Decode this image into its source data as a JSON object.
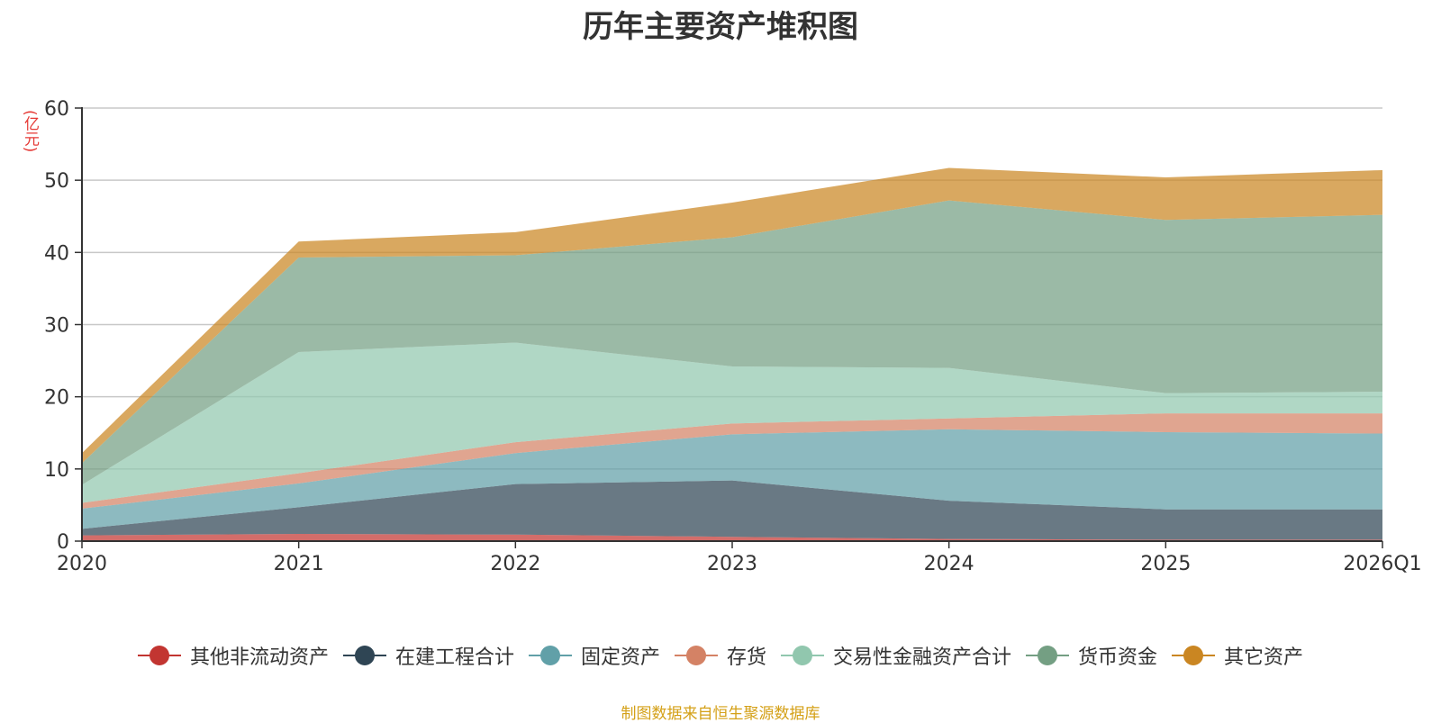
{
  "chart_data": {
    "type": "area",
    "stacked": true,
    "title": "历年主要资产堆积图",
    "unit_label": "(亿元)",
    "categories": [
      "2020",
      "2021",
      "2022",
      "2023",
      "2024",
      "2025",
      "2026Q1"
    ],
    "ylim": [
      0,
      60
    ],
    "yticks": [
      0,
      10,
      20,
      30,
      40,
      50,
      60
    ],
    "grid": true,
    "legend_position": "bottom",
    "series": [
      {
        "name": "其他非流动资产",
        "color": "#c23531",
        "values": [
          0.8,
          1.0,
          0.9,
          0.6,
          0.3,
          0.2,
          0.2
        ]
      },
      {
        "name": "在建工程合计",
        "color": "#2f4554",
        "values": [
          0.9,
          3.7,
          7.0,
          7.8,
          5.3,
          4.2,
          4.2
        ]
      },
      {
        "name": "固定资产",
        "color": "#61a0a8",
        "values": [
          2.8,
          3.3,
          4.3,
          6.4,
          9.9,
          10.7,
          10.5
        ]
      },
      {
        "name": "存货",
        "color": "#d48265",
        "values": [
          0.8,
          1.4,
          1.5,
          1.5,
          1.5,
          2.6,
          2.8
        ]
      },
      {
        "name": "交易性金融资产合计",
        "color": "#91c7ae",
        "values": [
          2.5,
          16.8,
          13.8,
          7.9,
          7.0,
          2.8,
          3.0
        ]
      },
      {
        "name": "货币资金",
        "color": "#749f83",
        "values": [
          3.0,
          13.1,
          12.1,
          17.9,
          23.2,
          24.0,
          24.5
        ]
      },
      {
        "name": "其它资产",
        "color": "#ca8622",
        "values": [
          1.4,
          2.2,
          3.2,
          4.8,
          4.5,
          5.9,
          6.2
        ]
      }
    ]
  },
  "source": "制图数据来自恒生聚源数据库"
}
